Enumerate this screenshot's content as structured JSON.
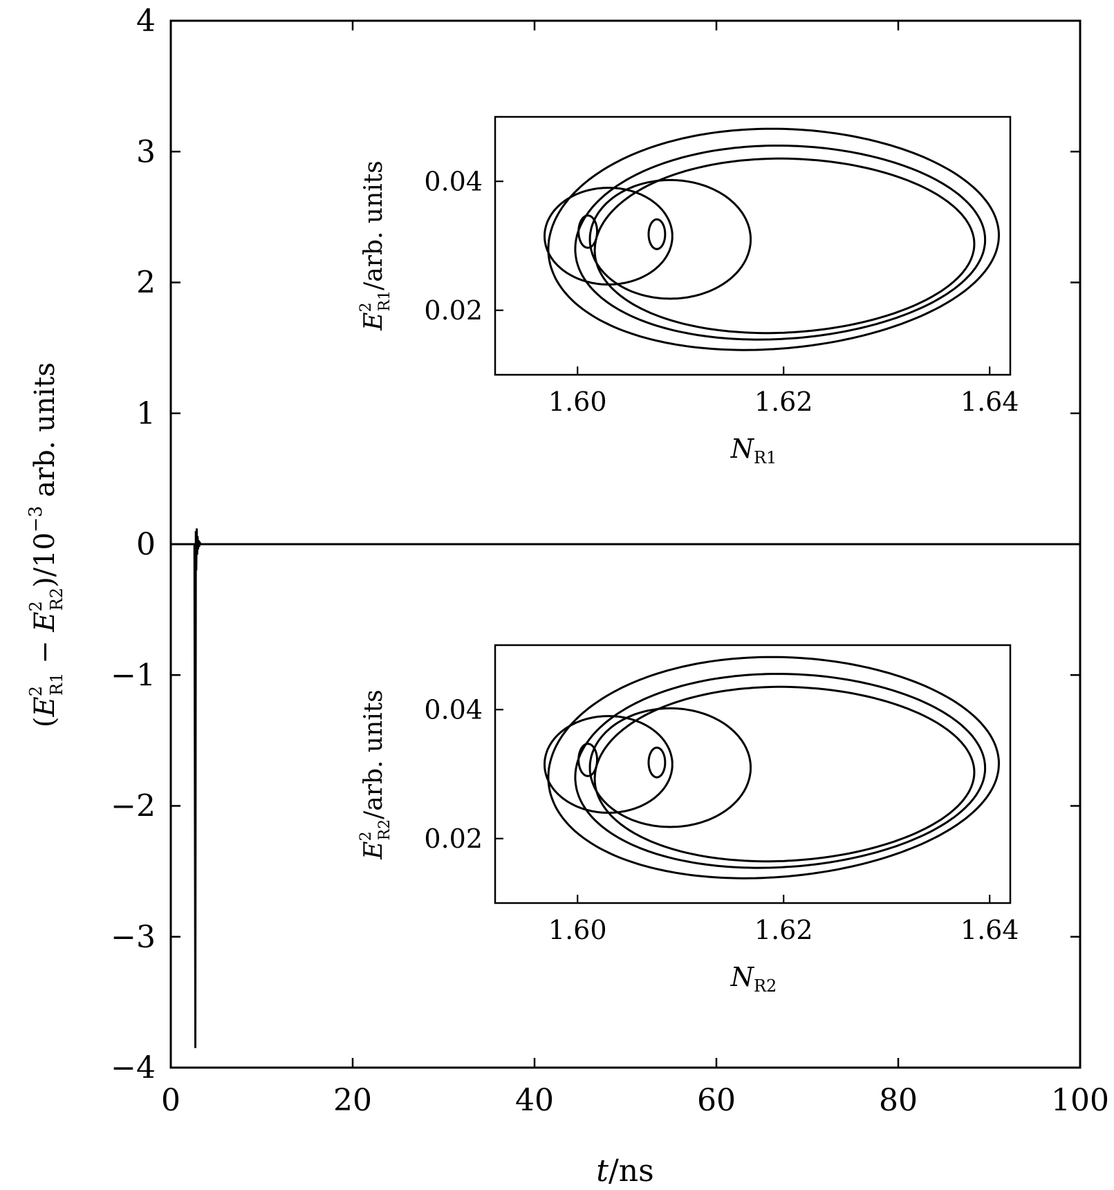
{
  "chart_data": [
    {
      "type": "line",
      "role": "main",
      "xlabel": {
        "var": "t",
        "unit": "ns"
      },
      "ylabel": {
        "sym": "E",
        "sub1": "R1",
        "sub2": "R2",
        "sup": "2",
        "exp": "−3",
        "unit": "arb. units"
      },
      "xlim": [
        0,
        100
      ],
      "ylim": [
        -4,
        4
      ],
      "xticks": [
        "0",
        "20",
        "40",
        "60",
        "80",
        "100"
      ],
      "yticks": [
        "−4",
        "−3",
        "−2",
        "−1",
        "0",
        "1",
        "2",
        "3",
        "4"
      ],
      "grid": false,
      "series": [
        {
          "x": [
            0,
            2.6,
            2.7,
            2.75,
            2.8,
            2.85,
            2.9,
            2.95,
            3.0,
            3.05,
            3.1,
            3.2,
            3.3,
            3.5,
            4.0,
            10,
            100
          ],
          "y": [
            0,
            0,
            -3.85,
            0.1,
            -0.2,
            0.12,
            -0.08,
            0.06,
            -0.04,
            0.03,
            -0.02,
            0.01,
            0,
            0,
            0,
            0,
            0
          ]
        }
      ]
    },
    {
      "type": "line",
      "role": "inset-top",
      "xlabel": {
        "sym": "N",
        "sub": "R1"
      },
      "ylabel": {
        "sym": "E",
        "sub": "R1",
        "sup": "2",
        "unit": "arb. units"
      },
      "xlim": [
        1.592,
        1.642
      ],
      "ylim": [
        0.01,
        0.05
      ],
      "xticks": [
        "1.60",
        "1.62",
        "1.64"
      ],
      "yticks": [
        "0.02",
        "0.04"
      ],
      "xtick_values": [
        1.6,
        1.62,
        1.64
      ],
      "ytick_values": [
        0.02,
        0.04
      ]
    },
    {
      "type": "line",
      "role": "inset-bottom",
      "xlabel": {
        "sym": "N",
        "sub": "R2"
      },
      "ylabel": {
        "sym": "E",
        "sub": "R2",
        "sup": "2",
        "unit": "arb. units"
      },
      "xlim": [
        1.592,
        1.642
      ],
      "ylim": [
        0.01,
        0.05
      ],
      "xticks": [
        "1.60",
        "1.62",
        "1.64"
      ],
      "yticks": [
        "0.02",
        "0.04"
      ],
      "xtick_values": [
        1.6,
        1.62,
        1.64
      ],
      "ytick_values": [
        0.02,
        0.04
      ]
    }
  ],
  "attractor": {
    "description_free": true,
    "curves": [
      {
        "cx": 1.6175,
        "cy": 0.031,
        "rx": 0.022,
        "ry": 0.0171,
        "tilt": -0.18,
        "pinch": 0.12
      },
      {
        "cx": 1.6185,
        "cy": 0.0305,
        "rx": 0.02,
        "ry": 0.015,
        "tilt": -0.16,
        "pinch": 0.1
      },
      {
        "cx": 1.619,
        "cy": 0.03,
        "rx": 0.0185,
        "ry": 0.0135,
        "tilt": -0.14,
        "pinch": 0.1
      },
      {
        "cx": 1.609,
        "cy": 0.031,
        "rx": 0.0078,
        "ry": 0.0092,
        "tilt": 0.0,
        "pinch": 0.0
      },
      {
        "cx": 1.603,
        "cy": 0.0315,
        "rx": 0.0062,
        "ry": 0.0075,
        "tilt": 0.0,
        "pinch": 0.0
      },
      {
        "cx": 1.601,
        "cy": 0.0322,
        "rx": 0.0009,
        "ry": 0.0025,
        "tilt": 0.0,
        "pinch": 0.0
      },
      {
        "cx": 1.6077,
        "cy": 0.0318,
        "rx": 0.0008,
        "ry": 0.0023,
        "tilt": 0.0,
        "pinch": 0.0
      }
    ]
  }
}
